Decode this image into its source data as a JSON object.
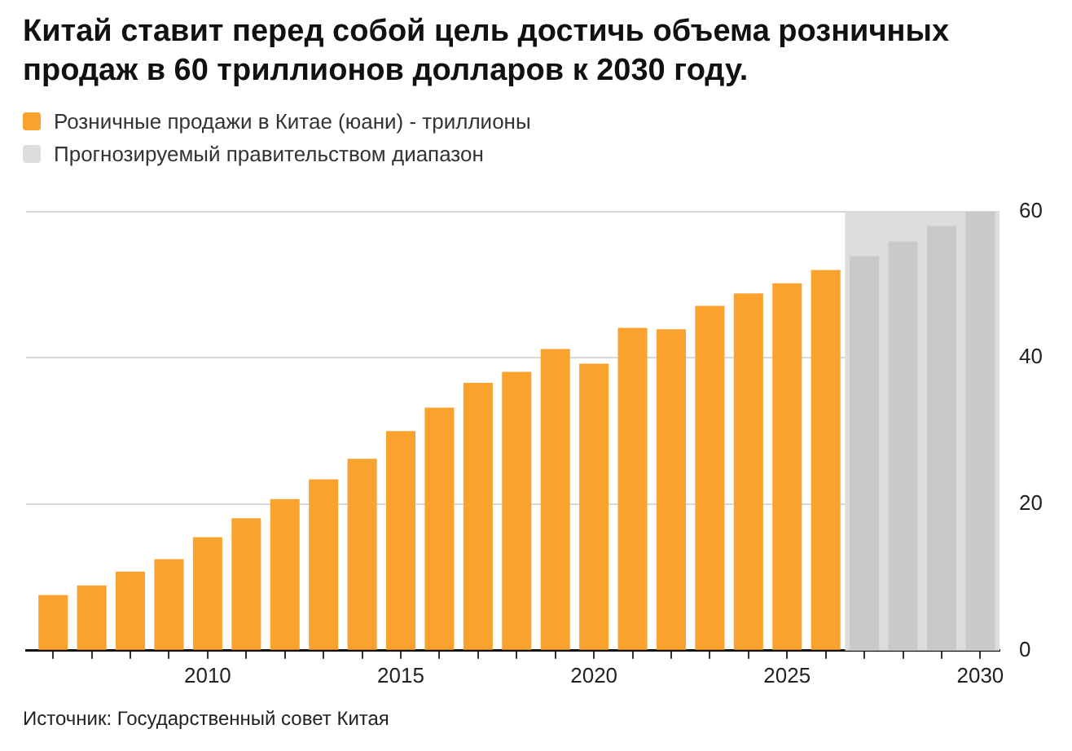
{
  "chart_data": {
    "type": "bar",
    "title": "Китай ставит перед собой цель достичь объема розничных продаж в 60 триллионов долларов к 2030 году.",
    "x": [
      2006,
      2007,
      2008,
      2009,
      2010,
      2011,
      2012,
      2013,
      2014,
      2015,
      2016,
      2017,
      2018,
      2019,
      2020,
      2021,
      2022,
      2023,
      2024,
      2025,
      2026,
      2027,
      2028,
      2029,
      2030
    ],
    "series": [
      {
        "name": "Розничные продажи в Китае (юани) - триллионы",
        "color": "#f9a22d",
        "colors": [
          "#f9a22d",
          "#f9a22d",
          "#f9a22d",
          "#f9a22d",
          "#f9a22d",
          "#f9a22d",
          "#f9a22d",
          "#f9a22d",
          "#f9a22d",
          "#f9a22d",
          "#f9a22d",
          "#f9a22d",
          "#f9a22d",
          "#f9a22d",
          "#f9a22d",
          "#f9a22d",
          "#f9a22d",
          "#f9a22d",
          "#f9a22d",
          "#f9a22d",
          "#f9a22d",
          "#c9c9c9",
          "#c9c9c9",
          "#c9c9c9",
          "#c9c9c9"
        ],
        "values": [
          7.6,
          8.9,
          10.8,
          12.5,
          15.5,
          18.1,
          20.7,
          23.4,
          26.2,
          30.0,
          33.2,
          36.6,
          38.1,
          41.2,
          39.2,
          44.1,
          43.9,
          47.1,
          48.8,
          50.2,
          52.0,
          53.9,
          55.9,
          58.0,
          60.0
        ]
      }
    ],
    "bands": [
      {
        "axis": "x",
        "from": 2026.5,
        "to": 2030.5,
        "label": "Прогнозируемый правительством диапазон",
        "color": "#dddddd"
      }
    ],
    "xlim": [
      2005.3,
      2030.5
    ],
    "xticks": [
      {
        "value": 2006,
        "label": null
      },
      {
        "value": 2007,
        "label": null
      },
      {
        "value": 2008,
        "label": null
      },
      {
        "value": 2009,
        "label": null
      },
      2010,
      {
        "value": 2011,
        "label": null
      },
      {
        "value": 2012,
        "label": null
      },
      {
        "value": 2013,
        "label": null
      },
      {
        "value": 2014,
        "label": null
      },
      2015,
      {
        "value": 2016,
        "label": null
      },
      {
        "value": 2017,
        "label": null
      },
      {
        "value": 2018,
        "label": null
      },
      {
        "value": 2019,
        "label": null
      },
      2020,
      {
        "value": 2021,
        "label": null
      },
      {
        "value": 2022,
        "label": null
      },
      {
        "value": 2023,
        "label": null
      },
      {
        "value": 2024,
        "label": null
      },
      2025,
      {
        "value": 2026,
        "label": null
      },
      {
        "value": 2027,
        "label": null
      },
      {
        "value": 2028,
        "label": null
      },
      {
        "value": 2029,
        "label": null
      },
      2030
    ],
    "ylim": [
      0,
      60
    ],
    "yticks": [
      0,
      20,
      40,
      60
    ],
    "grid": "y",
    "legend": "top left",
    "annotations": [
      "Источник: Государственный совет Китая"
    ]
  }
}
